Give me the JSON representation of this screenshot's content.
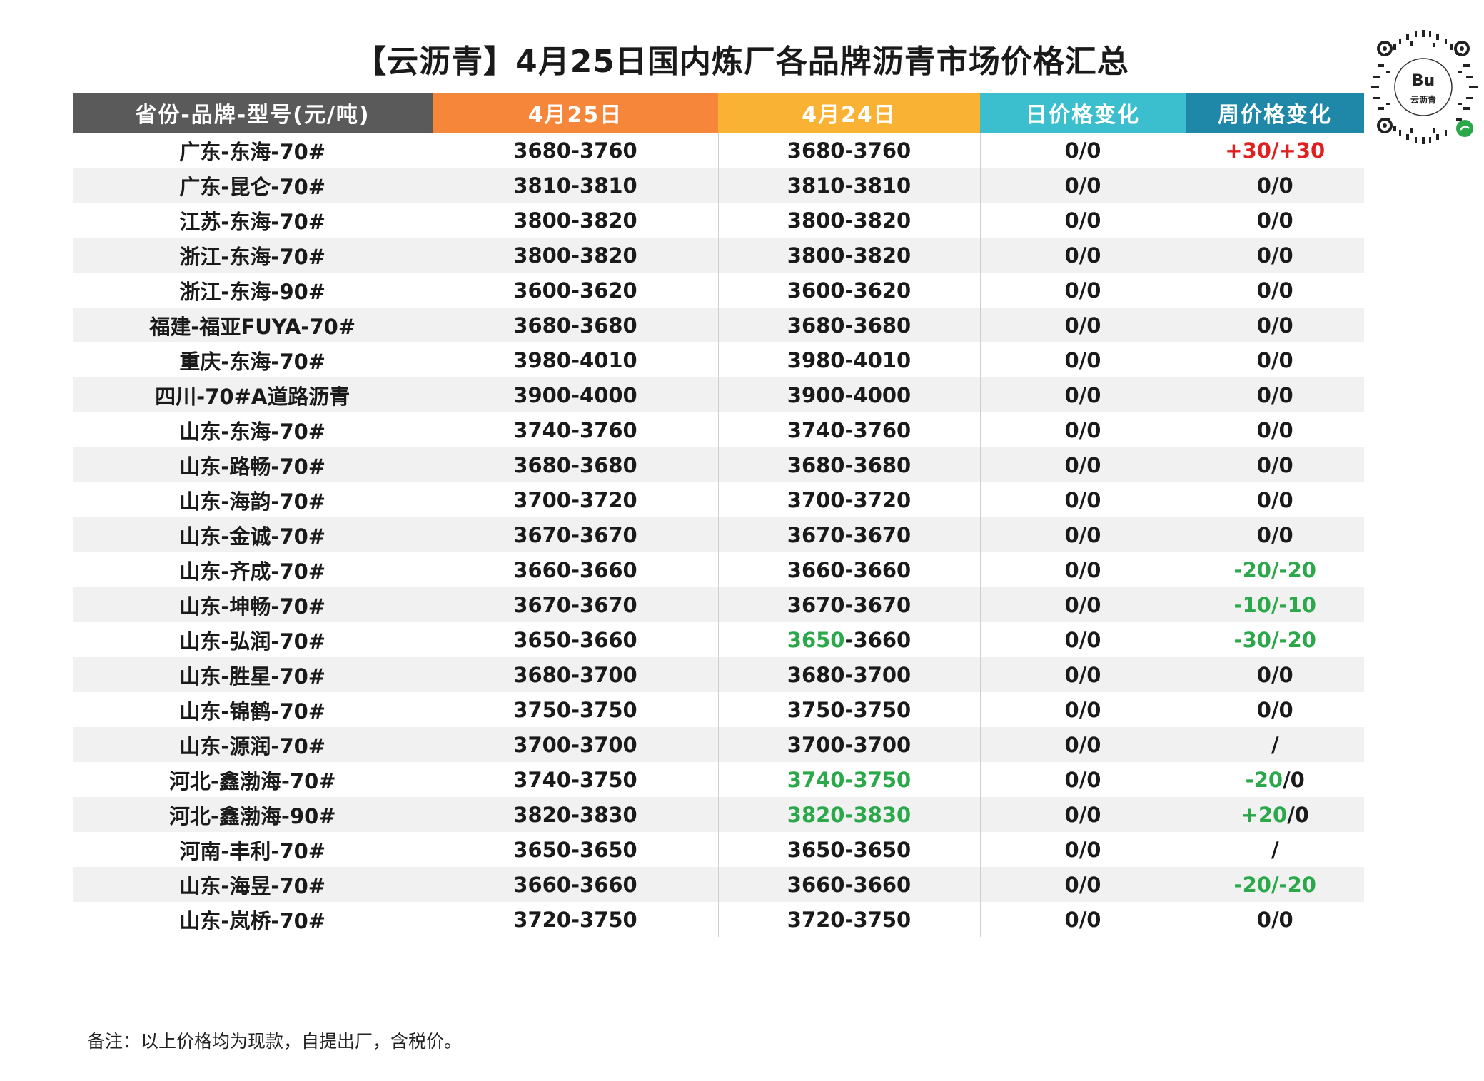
{
  "title": "【云沥青】4月25日国内炼厂各品牌沥青市场价格汇总",
  "qr": {
    "brand_text": "云沥青",
    "logo_text": "Bu"
  },
  "table": {
    "headers": [
      "省份-品牌-型号(元/吨)",
      "4月25日",
      "4月24日",
      "日价格变化",
      "周价格变化"
    ],
    "rows": [
      {
        "name": "广东-东海-70#",
        "p25": "3680-3760",
        "p24": [
          {
            "t": "3680-3760"
          }
        ],
        "day": "0/0",
        "week": [
          {
            "t": "+30/+30",
            "c": "up"
          }
        ]
      },
      {
        "name": "广东-昆仑-70#",
        "p25": "3810-3810",
        "p24": [
          {
            "t": "3810-3810"
          }
        ],
        "day": "0/0",
        "week": [
          {
            "t": "0/0"
          }
        ]
      },
      {
        "name": "江苏-东海-70#",
        "p25": "3800-3820",
        "p24": [
          {
            "t": "3800-3820"
          }
        ],
        "day": "0/0",
        "week": [
          {
            "t": "0/0"
          }
        ]
      },
      {
        "name": "浙江-东海-70#",
        "p25": "3800-3820",
        "p24": [
          {
            "t": "3800-3820"
          }
        ],
        "day": "0/0",
        "week": [
          {
            "t": "0/0"
          }
        ]
      },
      {
        "name": "浙江-东海-90#",
        "p25": "3600-3620",
        "p24": [
          {
            "t": "3600-3620"
          }
        ],
        "day": "0/0",
        "week": [
          {
            "t": "0/0"
          }
        ]
      },
      {
        "name": "福建-福亚FUYA-70#",
        "p25": "3680-3680",
        "p24": [
          {
            "t": "3680-3680"
          }
        ],
        "day": "0/0",
        "week": [
          {
            "t": "0/0"
          }
        ]
      },
      {
        "name": "重庆-东海-70#",
        "p25": "3980-4010",
        "p24": [
          {
            "t": "3980-4010"
          }
        ],
        "day": "0/0",
        "week": [
          {
            "t": "0/0"
          }
        ]
      },
      {
        "name": "四川-70#A道路沥青",
        "p25": "3900-4000",
        "p24": [
          {
            "t": "3900-4000"
          }
        ],
        "day": "0/0",
        "week": [
          {
            "t": "0/0"
          }
        ]
      },
      {
        "name": "山东-东海-70#",
        "p25": "3740-3760",
        "p24": [
          {
            "t": "3740-3760"
          }
        ],
        "day": "0/0",
        "week": [
          {
            "t": "0/0"
          }
        ]
      },
      {
        "name": "山东-路畅-70#",
        "p25": "3680-3680",
        "p24": [
          {
            "t": "3680-3680"
          }
        ],
        "day": "0/0",
        "week": [
          {
            "t": "0/0"
          }
        ]
      },
      {
        "name": "山东-海韵-70#",
        "p25": "3700-3720",
        "p24": [
          {
            "t": "3700-3720"
          }
        ],
        "day": "0/0",
        "week": [
          {
            "t": "0/0"
          }
        ]
      },
      {
        "name": "山东-金诚-70#",
        "p25": "3670-3670",
        "p24": [
          {
            "t": "3670-3670"
          }
        ],
        "day": "0/0",
        "week": [
          {
            "t": "0/0"
          }
        ]
      },
      {
        "name": "山东-齐成-70#",
        "p25": "3660-3660",
        "p24": [
          {
            "t": "3660-3660"
          }
        ],
        "day": "0/0",
        "week": [
          {
            "t": "-20/-20",
            "c": "down"
          }
        ]
      },
      {
        "name": "山东-坤畅-70#",
        "p25": "3670-3670",
        "p24": [
          {
            "t": "3670-3670"
          }
        ],
        "day": "0/0",
        "week": [
          {
            "t": "-10/-10",
            "c": "down"
          }
        ]
      },
      {
        "name": "山东-弘润-70#",
        "p25": "3650-3660",
        "p24": [
          {
            "t": "3650",
            "c": "down"
          },
          {
            "t": "-3660"
          }
        ],
        "day": "0/0",
        "week": [
          {
            "t": "-30/-20",
            "c": "down"
          }
        ]
      },
      {
        "name": "山东-胜星-70#",
        "p25": "3680-3700",
        "p24": [
          {
            "t": "3680-3700"
          }
        ],
        "day": "0/0",
        "week": [
          {
            "t": "0/0"
          }
        ]
      },
      {
        "name": "山东-锦鹤-70#",
        "p25": "3750-3750",
        "p24": [
          {
            "t": "3750-3750"
          }
        ],
        "day": "0/0",
        "week": [
          {
            "t": "0/0"
          }
        ]
      },
      {
        "name": "山东-源润-70#",
        "p25": "3700-3700",
        "p24": [
          {
            "t": "3700-3700"
          }
        ],
        "day": "0/0",
        "week": [
          {
            "t": "/"
          }
        ]
      },
      {
        "name": "河北-鑫渤海-70#",
        "p25": "3740-3750",
        "p24": [
          {
            "t": "3740-3750",
            "c": "down"
          }
        ],
        "day": "0/0",
        "week": [
          {
            "t": "-20",
            "c": "down"
          },
          {
            "t": "/0"
          }
        ]
      },
      {
        "name": "河北-鑫渤海-90#",
        "p25": "3820-3830",
        "p24": [
          {
            "t": "3820-3830",
            "c": "down"
          }
        ],
        "day": "0/0",
        "week": [
          {
            "t": "+20",
            "c": "down"
          },
          {
            "t": "/0"
          }
        ]
      },
      {
        "name": "河南-丰利-70#",
        "p25": "3650-3650",
        "p24": [
          {
            "t": "3650-3650"
          }
        ],
        "day": "0/0",
        "week": [
          {
            "t": "/"
          }
        ]
      },
      {
        "name": "山东-海昱-70#",
        "p25": "3660-3660",
        "p24": [
          {
            "t": "3660-3660"
          }
        ],
        "day": "0/0",
        "week": [
          {
            "t": "-20/-20",
            "c": "down"
          }
        ]
      },
      {
        "name": "山东-岚桥-70#",
        "p25": "3720-3750",
        "p24": [
          {
            "t": "3720-3750"
          }
        ],
        "day": "0/0",
        "week": [
          {
            "t": "0/0"
          }
        ]
      }
    ]
  },
  "note": "备注：以上价格均为现款，自提出厂，含税价。"
}
